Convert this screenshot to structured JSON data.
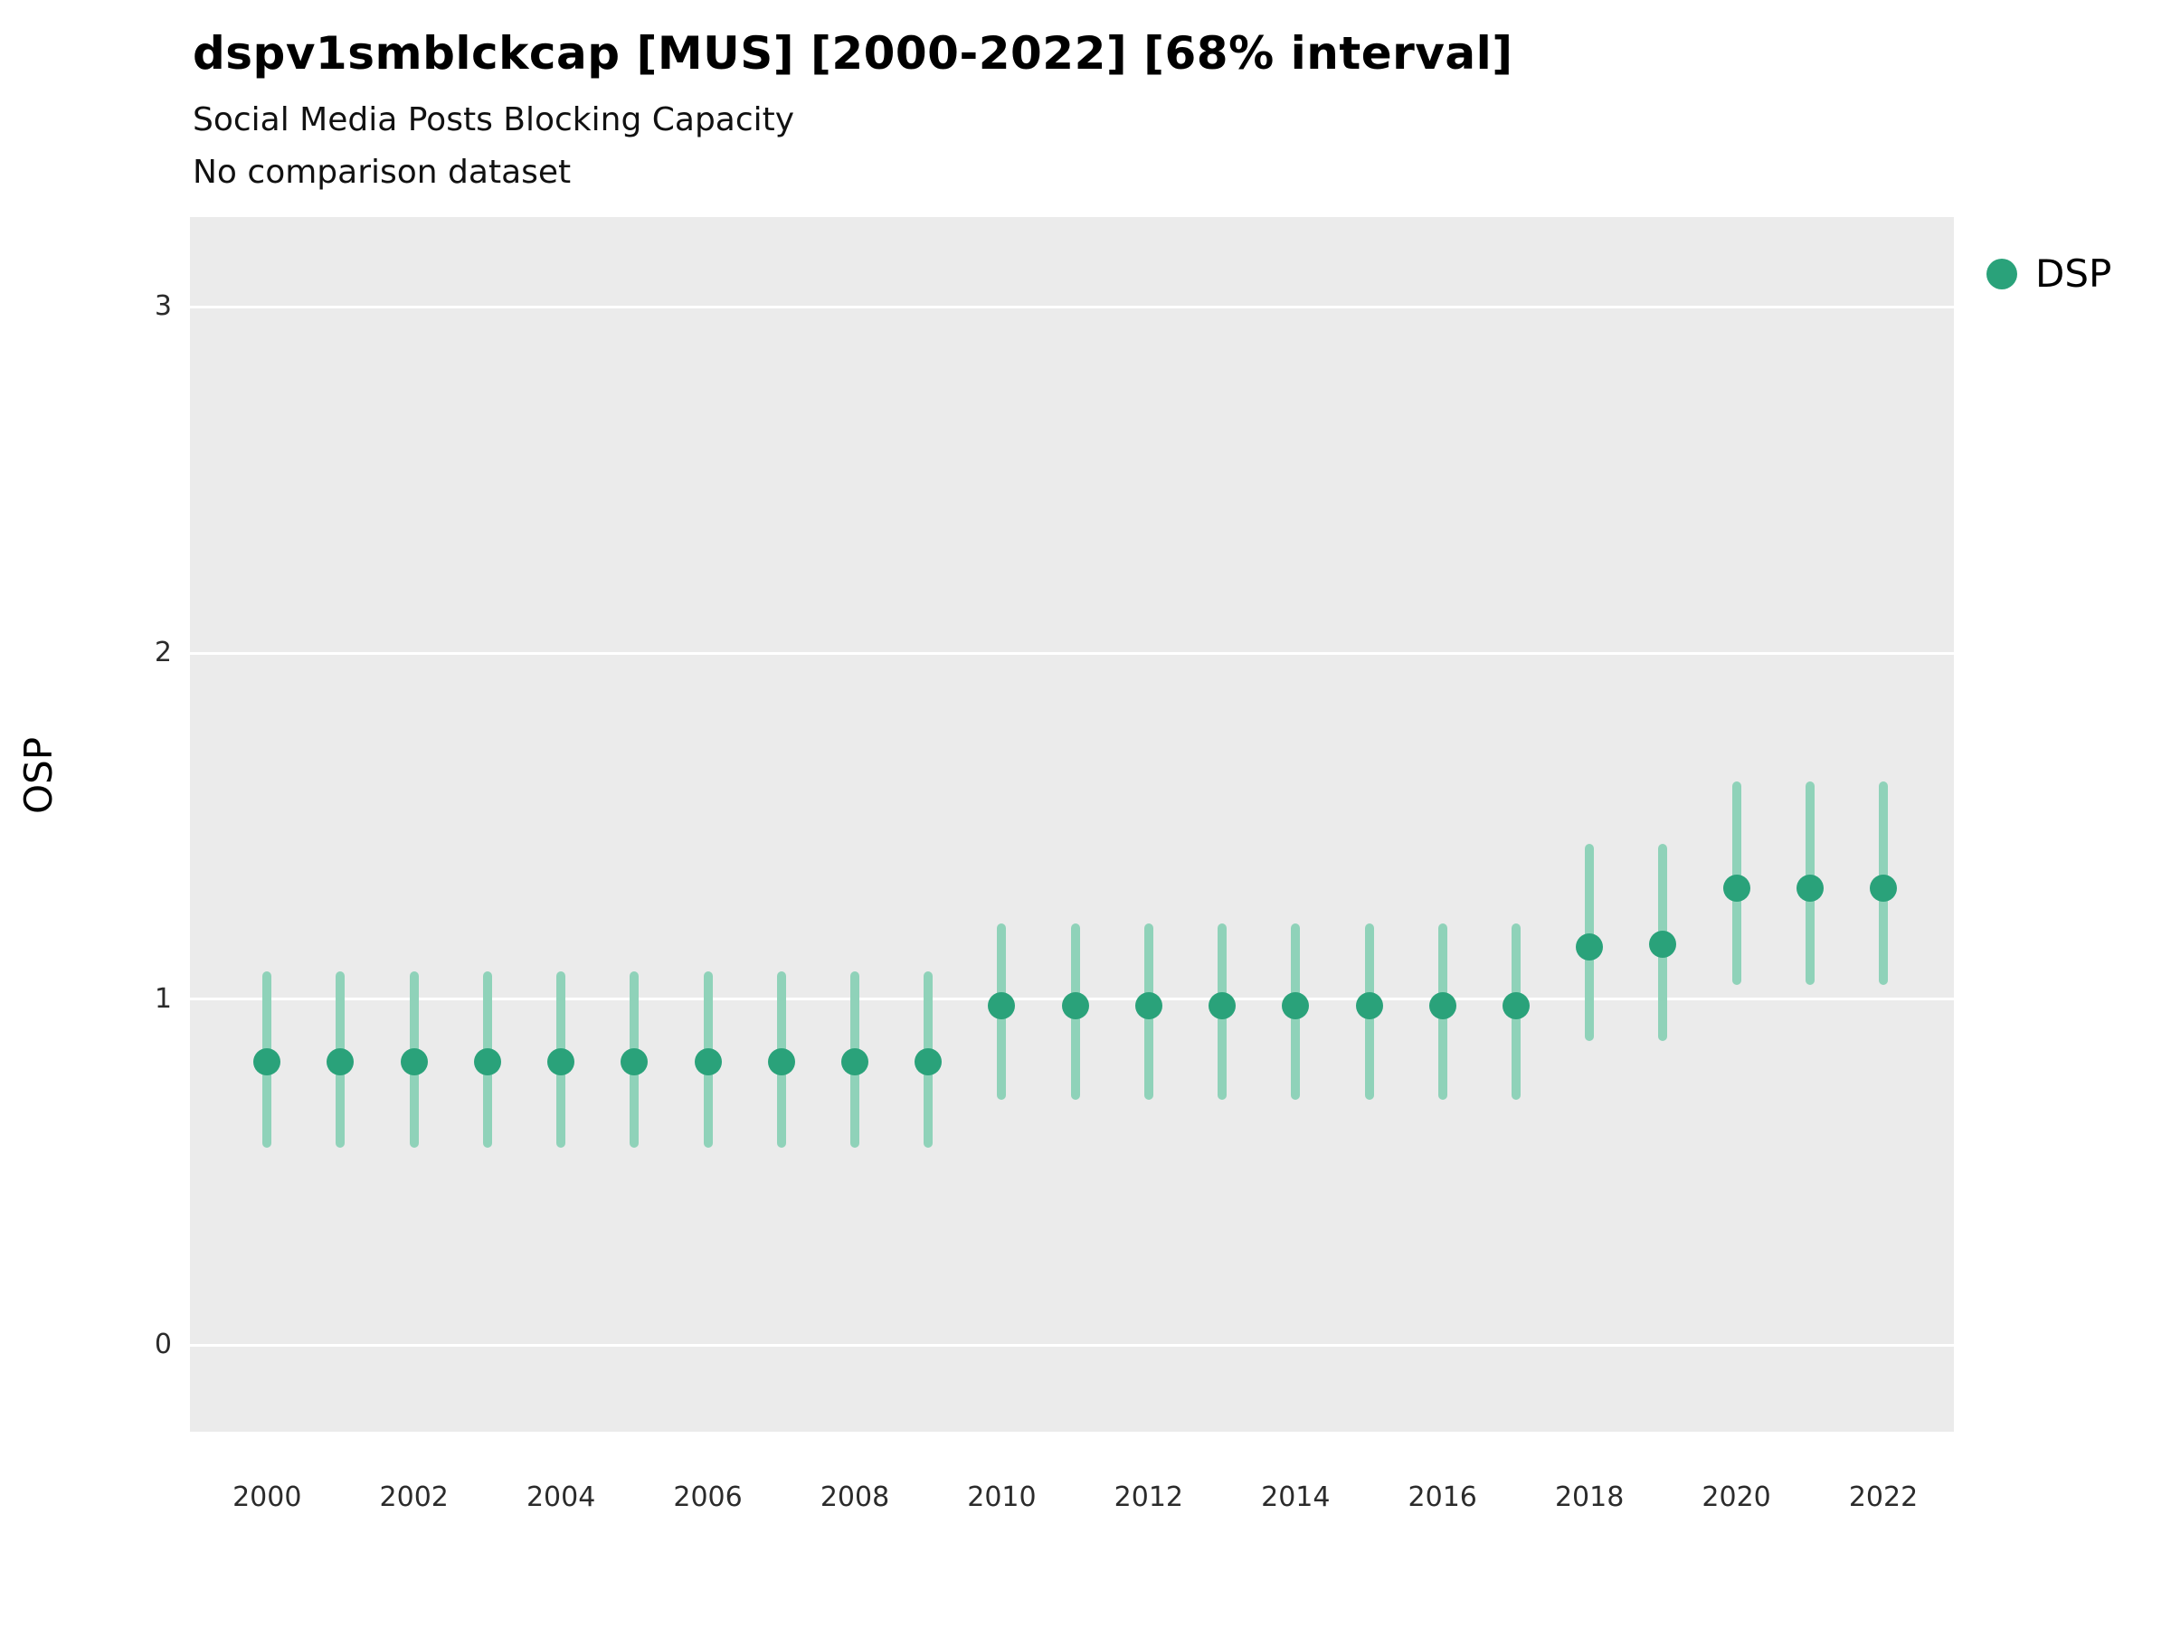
{
  "header": {
    "title": "dspv1smblckcap [MUS] [2000-2022] [68% interval]",
    "subtitle1": "Social Media Posts Blocking Capacity",
    "subtitle2": "No comparison dataset"
  },
  "legend": {
    "label": "DSP"
  },
  "chart_data": {
    "type": "scatter",
    "title": "dspv1smblckcap [MUS] [2000-2022] [68% interval]",
    "subtitle": "Social Media Posts Blocking Capacity",
    "note": "No comparison dataset",
    "xlabel": "",
    "ylabel": "OSP",
    "x": [
      2000,
      2001,
      2002,
      2003,
      2004,
      2005,
      2006,
      2007,
      2008,
      2009,
      2010,
      2011,
      2012,
      2013,
      2014,
      2015,
      2016,
      2017,
      2018,
      2019,
      2020,
      2021,
      2022
    ],
    "series": [
      {
        "name": "DSP",
        "values": [
          0.82,
          0.82,
          0.82,
          0.82,
          0.82,
          0.82,
          0.82,
          0.82,
          0.82,
          0.82,
          0.98,
          0.98,
          0.98,
          0.98,
          0.98,
          0.98,
          0.98,
          0.98,
          1.15,
          1.16,
          1.32,
          1.32,
          1.32
        ],
        "lower": [
          0.57,
          0.57,
          0.57,
          0.57,
          0.57,
          0.57,
          0.57,
          0.57,
          0.57,
          0.57,
          0.71,
          0.71,
          0.71,
          0.71,
          0.71,
          0.71,
          0.71,
          0.71,
          0.88,
          0.88,
          1.04,
          1.04,
          1.04
        ],
        "upper": [
          1.08,
          1.08,
          1.08,
          1.08,
          1.08,
          1.08,
          1.08,
          1.08,
          1.08,
          1.08,
          1.22,
          1.22,
          1.22,
          1.22,
          1.22,
          1.22,
          1.22,
          1.22,
          1.45,
          1.45,
          1.63,
          1.63,
          1.63
        ]
      }
    ],
    "interval_label": "68% interval",
    "xticks": [
      2000,
      2002,
      2004,
      2006,
      2008,
      2010,
      2012,
      2014,
      2016,
      2018,
      2020,
      2022
    ],
    "yticks": [
      0,
      1,
      2,
      3
    ],
    "xlim": [
      1998.95,
      2022.96
    ],
    "ylim": [
      -0.25,
      3.26
    ],
    "grid": "horizontal-major-only",
    "legend_position": "right-top",
    "colors": {
      "point": "#2aa27a",
      "interval": "#8fd2b9",
      "panel": "#EBEBEB",
      "grid": "#FFFFFF"
    }
  }
}
